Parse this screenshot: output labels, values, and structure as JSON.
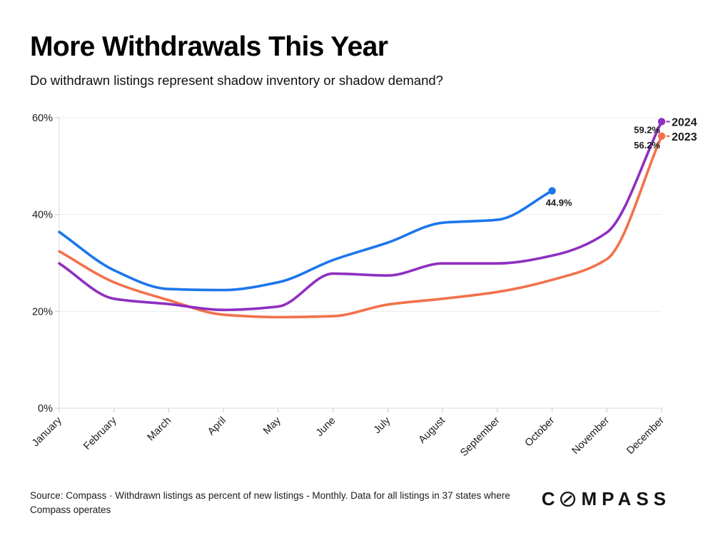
{
  "header": {
    "title": "More Withdrawals This Year",
    "subtitle": "Do withdrawn listings represent shadow inventory or shadow demand?"
  },
  "chart_data": {
    "type": "line",
    "title": "More Withdrawals This Year",
    "subtitle": "Do withdrawn listings represent shadow inventory or shadow demand?",
    "categories": [
      "January",
      "February",
      "March",
      "April",
      "May",
      "June",
      "July",
      "August",
      "September",
      "October",
      "November",
      "December"
    ],
    "ylim": [
      0,
      60
    ],
    "y_tick_values": [
      0,
      20,
      40,
      60
    ],
    "y_tick_labels": [
      "0%",
      "20%",
      "40%",
      "60%"
    ],
    "grid": "horizontal",
    "legend_position": "end-of-line",
    "series": [
      {
        "id": "y2023",
        "label": "2023",
        "color": "#f2714b",
        "end_label": "56.2%",
        "values": [
          32.4,
          26.0,
          22.3,
          19.3,
          18.8,
          19.0,
          21.4,
          22.6,
          24.0,
          26.5,
          30.8,
          56.2
        ]
      },
      {
        "id": "y2024",
        "label": "2024",
        "color": "#8e2fc0",
        "end_label": "59.2%",
        "values": [
          29.9,
          22.6,
          21.5,
          20.3,
          21.0,
          27.8,
          27.4,
          29.9,
          29.9,
          31.5,
          36.3,
          59.2
        ]
      },
      {
        "id": "current",
        "label": "",
        "color": "#1c76ec",
        "end_label": "44.9%",
        "values": [
          36.4,
          28.5,
          24.6,
          24.4,
          26.0,
          30.6,
          34.2,
          38.3,
          38.9,
          44.9
        ]
      }
    ]
  },
  "footer": {
    "source": "Source: Compass · Withdrawn listings as percent of new listings - Monthly. Data for all listings in 37 states where Compass operates",
    "logo_prefix": "C",
    "logo_suffix": "MPASS"
  }
}
